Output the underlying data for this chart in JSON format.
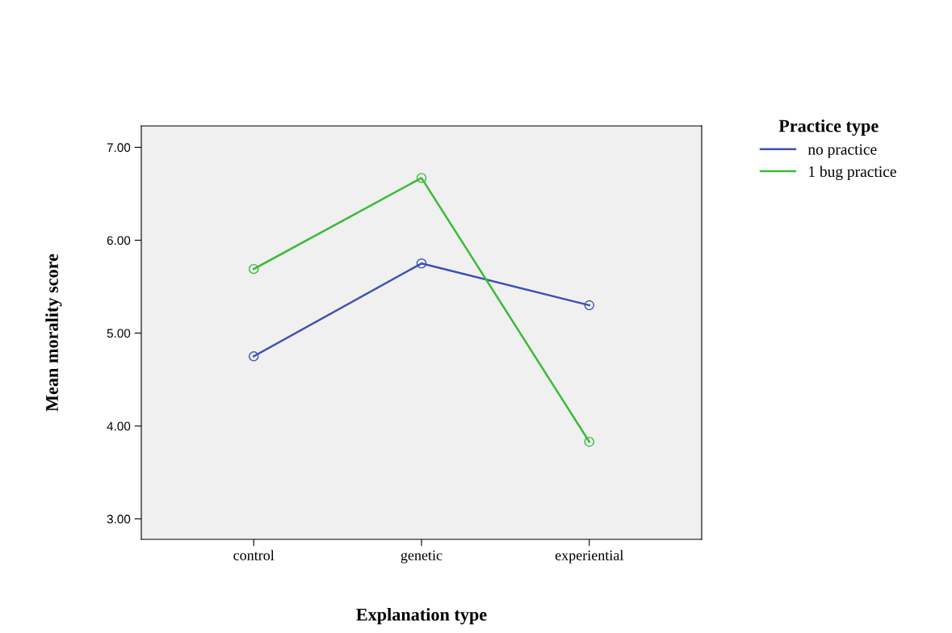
{
  "chart_data": {
    "type": "line",
    "xlabel": "Explanation type",
    "ylabel": "Mean morality score",
    "legend_title": "Practice type",
    "categories": [
      "control",
      "genetic",
      "experiential"
    ],
    "series": [
      {
        "name": "no practice",
        "color": "#3f51b1",
        "values": [
          4.75,
          5.75,
          5.3
        ]
      },
      {
        "name": "1 bug practice",
        "color": "#3cba3c",
        "values": [
          5.69,
          6.67,
          3.83
        ]
      }
    ],
    "ylim": [
      2.78,
      7.23
    ],
    "yticks": [
      {
        "value": 3,
        "label": "3.00"
      },
      {
        "value": 4,
        "label": "4.00"
      },
      {
        "value": 5,
        "label": "5.00"
      },
      {
        "value": 6,
        "label": "6.00"
      },
      {
        "value": 7,
        "label": "7.00"
      }
    ],
    "grid": false,
    "legend": "right",
    "marker": "circle",
    "line_style": "solid"
  }
}
